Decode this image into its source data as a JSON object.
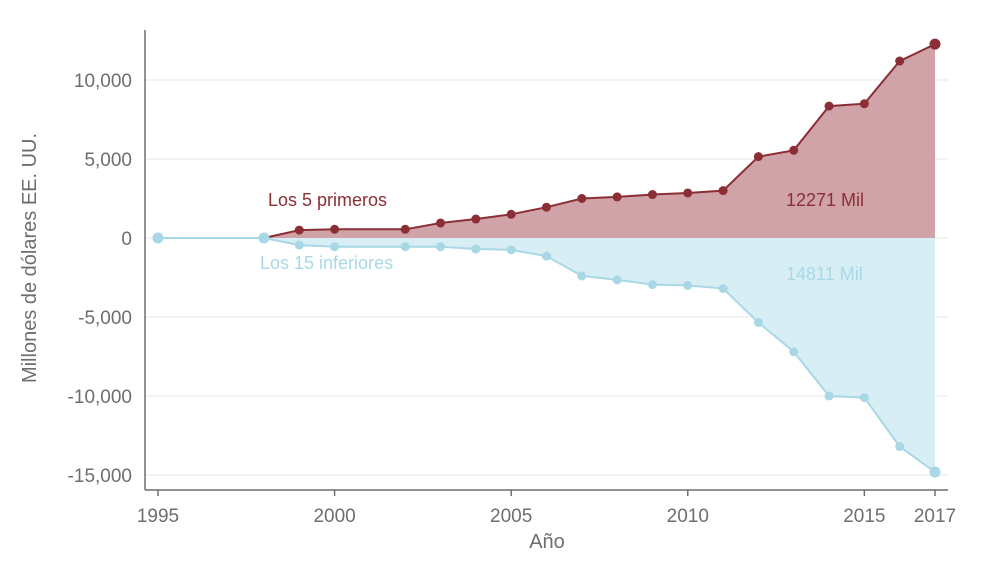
{
  "chart_data": {
    "type": "area",
    "xlabel": "Año",
    "ylabel": "Millones de dólares EE. UU.",
    "xlim": [
      1995,
      2017
    ],
    "ylim": [
      -15500,
      13000
    ],
    "x_ticks": [
      1995,
      2000,
      2005,
      2010,
      2015,
      2017
    ],
    "y_ticks": [
      10000,
      5000,
      0,
      -5000,
      -10000,
      -15000
    ],
    "y_tick_labels": [
      "10,000",
      "5,000",
      "0",
      "-5,000",
      "-10,000",
      "-15,000"
    ],
    "grid": "horizontal",
    "series": [
      {
        "name": "Los 5 primeros",
        "color": "#8b2e35",
        "fill": "#cfa3a8",
        "x": [
          1998,
          1999,
          2000,
          2002,
          2003,
          2004,
          2005,
          2006,
          2007,
          2008,
          2009,
          2010,
          2011,
          2012,
          2013,
          2014,
          2015,
          2016,
          2017
        ],
        "values": [
          0,
          500,
          550,
          550,
          950,
          1200,
          1500,
          1950,
          2500,
          2600,
          2750,
          2850,
          3000,
          5150,
          5550,
          8350,
          8500,
          11200,
          12271
        ]
      },
      {
        "name": "Los 15 inferiores",
        "color": "#a8d8e6",
        "fill": "#d8eef5",
        "x": [
          1995,
          1998,
          1999,
          2000,
          2002,
          2003,
          2004,
          2005,
          2006,
          2007,
          2008,
          2009,
          2010,
          2011,
          2012,
          2013,
          2014,
          2015,
          2016,
          2017
        ],
        "values": [
          0,
          0,
          -450,
          -550,
          -550,
          -550,
          -700,
          -750,
          -1150,
          -2400,
          -2650,
          -2950,
          -3000,
          -3200,
          -5350,
          -7200,
          -10000,
          -10100,
          -13200,
          -14811
        ]
      }
    ],
    "annotations": [
      {
        "text": "Los 5 primeros",
        "color": "#8b2e35"
      },
      {
        "text": "Los 15 inferiores",
        "color": "#a8d8e6"
      },
      {
        "text": "12271 Mil",
        "color": "#8b2e35"
      },
      {
        "text": "14811 Mil",
        "color": "#a8d8e6"
      }
    ]
  }
}
